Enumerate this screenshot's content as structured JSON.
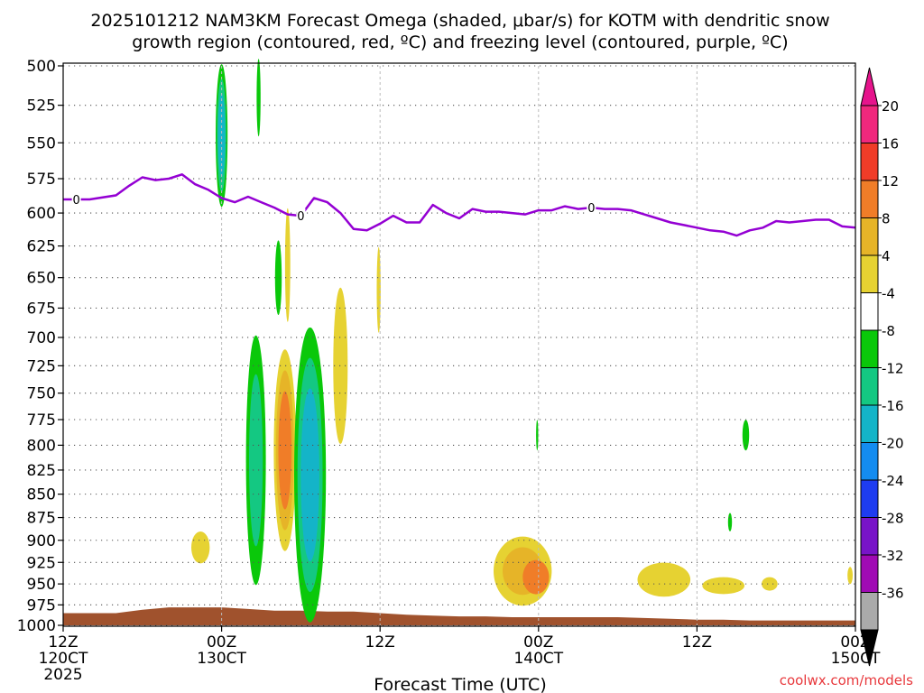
{
  "chart_data": {
    "type": "heatmap",
    "title_line1": "2025101212 NAM3KM Forecast Omega (shaded, μbar/s) for KOTM with dendritic snow",
    "title_line2": "growth region (contoured, red, ºC) and freezing level (contoured, purple, ºC)",
    "xlabel": "Forecast Time (UTC)",
    "credit": "coolwx.com/models",
    "x_range_hours": [
      0,
      60
    ],
    "y_range_mb": [
      500,
      1000
    ],
    "y_scale": "log-pressure",
    "x_ticks": [
      {
        "hour": 0,
        "line1": "12Z",
        "line2": "120CT",
        "line3": "2025"
      },
      {
        "hour": 12,
        "line1": "00Z",
        "line2": "130CT",
        "line3": ""
      },
      {
        "hour": 24,
        "line1": "12Z",
        "line2": "",
        "line3": ""
      },
      {
        "hour": 36,
        "line1": "00Z",
        "line2": "140CT",
        "line3": ""
      },
      {
        "hour": 48,
        "line1": "12Z",
        "line2": "",
        "line3": ""
      },
      {
        "hour": 60,
        "line1": "00Z",
        "line2": "150CT",
        "line3": ""
      }
    ],
    "y_ticks": [
      "500",
      "525",
      "550",
      "575",
      "600",
      "625",
      "650",
      "675",
      "700",
      "725",
      "750",
      "775",
      "800",
      "825",
      "850",
      "875",
      "900",
      "925",
      "950",
      "975",
      "1000"
    ],
    "colorbar": {
      "labels": [
        "20",
        "16",
        "12",
        "8",
        "4",
        "-4",
        "-8",
        "-12",
        "-16",
        "-20",
        "-24",
        "-28",
        "-32",
        "-36"
      ],
      "colors": [
        "#f0287d",
        "#f03c28",
        "#f07d28",
        "#e6b428",
        "#e6d232",
        "#ffffff",
        "#0ac80a",
        "#14c882",
        "#14b4c8",
        "#148cf0",
        "#1e3cf0",
        "#7814c8",
        "#a00ab4",
        "#aaaaaa"
      ],
      "top_arrow_color": "#e6148c",
      "bottom_arrow_color": "#000000"
    },
    "freezing_level": {
      "label": "0",
      "label_hours": [
        1.0,
        18.0,
        40.0
      ],
      "points": [
        [
          0,
          590
        ],
        [
          2,
          590
        ],
        [
          4,
          587
        ],
        [
          5,
          580
        ],
        [
          6,
          574
        ],
        [
          7,
          576
        ],
        [
          8,
          575
        ],
        [
          9,
          572
        ],
        [
          10,
          579
        ],
        [
          11,
          583
        ],
        [
          12,
          589
        ],
        [
          13,
          592
        ],
        [
          14,
          588
        ],
        [
          15,
          592
        ],
        [
          16,
          596
        ],
        [
          17,
          601
        ],
        [
          18,
          602
        ],
        [
          19,
          589
        ],
        [
          20,
          592
        ],
        [
          21,
          600
        ],
        [
          22,
          612
        ],
        [
          23,
          613
        ],
        [
          24,
          608
        ],
        [
          25,
          602
        ],
        [
          26,
          607
        ],
        [
          27,
          607
        ],
        [
          28,
          594
        ],
        [
          29,
          600
        ],
        [
          30,
          604
        ],
        [
          31,
          597
        ],
        [
          32,
          599
        ],
        [
          33,
          599
        ],
        [
          34,
          600
        ],
        [
          35,
          601
        ],
        [
          36,
          598
        ],
        [
          37,
          598
        ],
        [
          38,
          595
        ],
        [
          39,
          597
        ],
        [
          40,
          596
        ],
        [
          41,
          597
        ],
        [
          42,
          597
        ],
        [
          43,
          598
        ],
        [
          44,
          601
        ],
        [
          45,
          604
        ],
        [
          46,
          607
        ],
        [
          47,
          609
        ],
        [
          48,
          611
        ],
        [
          49,
          613
        ],
        [
          50,
          614
        ],
        [
          51,
          617
        ],
        [
          52,
          613
        ],
        [
          53,
          611
        ],
        [
          54,
          606
        ],
        [
          55,
          607
        ],
        [
          56,
          606
        ],
        [
          57,
          605
        ],
        [
          58,
          605
        ],
        [
          59,
          610
        ],
        [
          60,
          611
        ]
      ]
    },
    "terrain": {
      "color": "#a0522d",
      "points": [
        [
          0,
          985
        ],
        [
          2,
          985
        ],
        [
          4,
          985
        ],
        [
          6,
          981
        ],
        [
          8,
          978
        ],
        [
          10,
          978
        ],
        [
          12,
          978
        ],
        [
          14,
          980
        ],
        [
          16,
          982
        ],
        [
          18,
          982
        ],
        [
          20,
          983
        ],
        [
          22,
          983
        ],
        [
          24,
          985
        ],
        [
          26,
          987
        ],
        [
          28,
          988
        ],
        [
          30,
          989
        ],
        [
          32,
          989
        ],
        [
          34,
          990
        ],
        [
          36,
          990
        ],
        [
          38,
          990
        ],
        [
          40,
          990
        ],
        [
          42,
          990
        ],
        [
          44,
          991
        ],
        [
          46,
          992
        ],
        [
          48,
          993
        ],
        [
          50,
          993
        ],
        [
          52,
          994
        ],
        [
          54,
          994
        ],
        [
          56,
          994
        ],
        [
          58,
          994
        ],
        [
          60,
          994
        ]
      ]
    },
    "omega_regions": [
      {
        "name": "a",
        "center_hour": 12.0,
        "center_mb": 545,
        "half_width_h": 0.45,
        "half_height_mb": 48,
        "levels": [
          "-8",
          "-12",
          "-16"
        ]
      },
      {
        "name": "b",
        "center_hour": 14.8,
        "center_mb": 520,
        "half_width_h": 0.15,
        "half_height_mb": 25,
        "levels": [
          "-8"
        ]
      },
      {
        "name": "c",
        "center_hour": 16.3,
        "center_mb": 650,
        "half_width_h": 0.25,
        "half_height_mb": 30,
        "levels": [
          "-8"
        ]
      },
      {
        "name": "d",
        "center_hour": 17.0,
        "center_mb": 640,
        "half_width_h": 0.2,
        "half_height_mb": 45,
        "levels": [
          "4"
        ]
      },
      {
        "name": "e",
        "center_hour": 14.6,
        "center_mb": 815,
        "half_width_h": 0.75,
        "half_height_mb": 125,
        "levels": [
          "-8",
          "-12"
        ]
      },
      {
        "name": "f",
        "center_hour": 16.8,
        "center_mb": 805,
        "half_width_h": 0.85,
        "half_height_mb": 100,
        "levels": [
          "4",
          "8",
          "12"
        ]
      },
      {
        "name": "g",
        "center_hour": 18.7,
        "center_mb": 830,
        "half_width_h": 1.2,
        "half_height_mb": 150,
        "levels": [
          "-8",
          "-12",
          "-16"
        ]
      },
      {
        "name": "h",
        "center_hour": 21.0,
        "center_mb": 725,
        "half_width_h": 0.55,
        "half_height_mb": 70,
        "levels": [
          "4"
        ]
      },
      {
        "name": "i",
        "center_hour": 23.9,
        "center_mb": 660,
        "half_width_h": 0.15,
        "half_height_mb": 35,
        "levels": [
          "4"
        ]
      },
      {
        "name": "j",
        "center_hour": 10.4,
        "center_mb": 908,
        "half_width_h": 0.7,
        "half_height_mb": 18,
        "levels": [
          "4"
        ]
      },
      {
        "name": "k",
        "center_hour": 34.8,
        "center_mb": 935,
        "half_width_h": 2.2,
        "half_height_mb": 40,
        "levels": [
          "4",
          "8"
        ]
      },
      {
        "name": "l",
        "center_hour": 35.8,
        "center_mb": 942,
        "half_width_h": 1.0,
        "half_height_mb": 20,
        "levels": [
          "12"
        ]
      },
      {
        "name": "m",
        "center_hour": 45.5,
        "center_mb": 945,
        "half_width_h": 2.0,
        "half_height_mb": 20,
        "levels": [
          "4"
        ]
      },
      {
        "name": "n",
        "center_hour": 50.0,
        "center_mb": 952,
        "half_width_h": 1.6,
        "half_height_mb": 10,
        "levels": [
          "4"
        ]
      },
      {
        "name": "o",
        "center_hour": 53.5,
        "center_mb": 950,
        "half_width_h": 0.6,
        "half_height_mb": 8,
        "levels": [
          "4"
        ]
      },
      {
        "name": "p",
        "center_hour": 59.6,
        "center_mb": 940,
        "half_width_h": 0.2,
        "half_height_mb": 10,
        "levels": [
          "4"
        ]
      },
      {
        "name": "q",
        "center_hour": 35.9,
        "center_mb": 790,
        "half_width_h": 0.08,
        "half_height_mb": 15,
        "levels": [
          "-8"
        ]
      },
      {
        "name": "r",
        "center_hour": 51.7,
        "center_mb": 790,
        "half_width_h": 0.25,
        "half_height_mb": 15,
        "levels": [
          "-8"
        ]
      },
      {
        "name": "s",
        "center_hour": 50.5,
        "center_mb": 880,
        "half_width_h": 0.15,
        "half_height_mb": 10,
        "levels": [
          "-8"
        ]
      }
    ]
  }
}
